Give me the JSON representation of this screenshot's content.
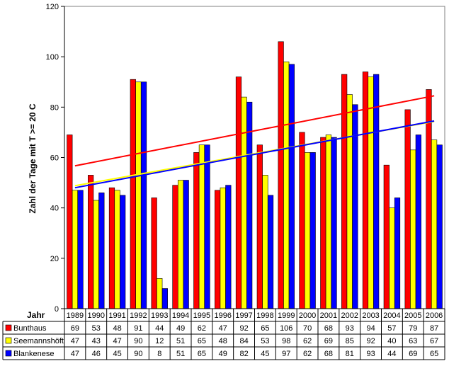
{
  "chart_data": {
    "type": "bar",
    "title": "",
    "xlabel": "Jahr",
    "ylabel": "Zahl der Tage mit T >= 20 C",
    "ylim": [
      0,
      120
    ],
    "yticks": [
      0,
      20,
      40,
      60,
      80,
      100,
      120
    ],
    "grid": false,
    "legend": "data-table-left",
    "categories": [
      "1989",
      "1990",
      "1991",
      "1992",
      "1993",
      "1994",
      "1995",
      "1996",
      "1997",
      "1998",
      "1999",
      "2000",
      "2001",
      "2002",
      "2003",
      "2004",
      "2005",
      "2006"
    ],
    "series": [
      {
        "name": "Bunthaus",
        "color": "#ff0000",
        "values": [
          69,
          53,
          48,
          91,
          44,
          49,
          62,
          47,
          92,
          65,
          106,
          70,
          68,
          93,
          94,
          57,
          79,
          87
        ],
        "trend": [
          56.7,
          84.5
        ]
      },
      {
        "name": "Seemannshöft",
        "color": "#ffff00",
        "values": [
          47,
          43,
          47,
          90,
          12,
          51,
          65,
          48,
          84,
          53,
          98,
          62,
          69,
          85,
          92,
          40,
          63,
          67
        ],
        "trend": [
          48.8,
          74.3
        ]
      },
      {
        "name": "Blankenese",
        "color": "#0000ff",
        "values": [
          47,
          46,
          45,
          90,
          8,
          51,
          65,
          49,
          82,
          45,
          97,
          62,
          68,
          81,
          93,
          44,
          69,
          65
        ],
        "trend": [
          48.0,
          74.5
        ]
      }
    ]
  }
}
